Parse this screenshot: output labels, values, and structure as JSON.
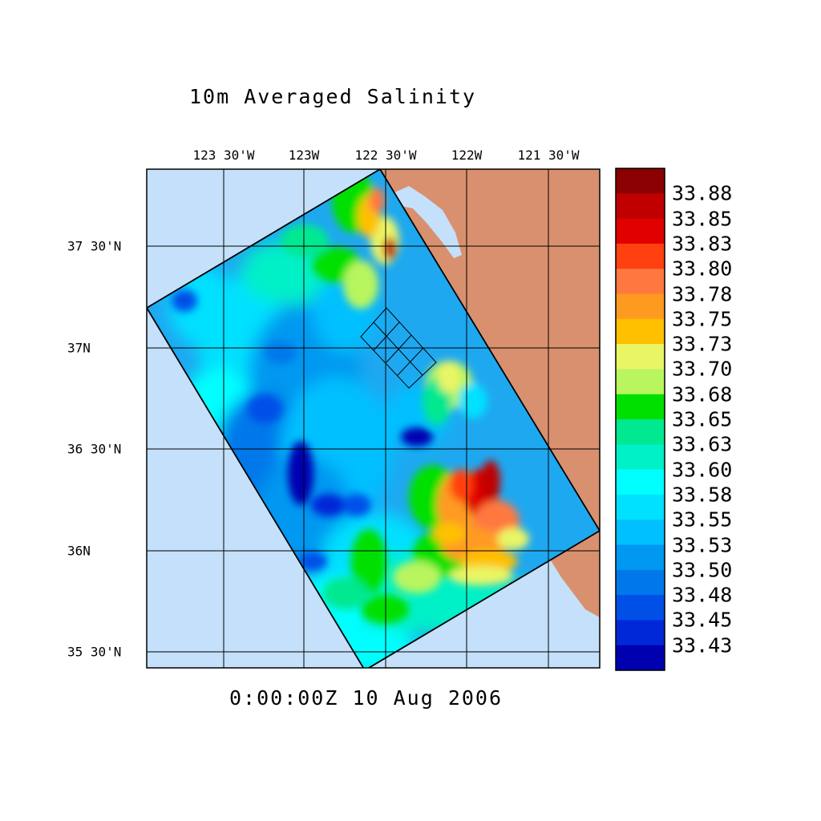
{
  "title": "10m Averaged Salinity",
  "time_label": "0:00:00Z  10 Aug 2006",
  "lon_labels": [
    "123 30'W",
    "123W",
    "122 30'W",
    "122W",
    "121 30'W"
  ],
  "lat_labels": [
    "37 30'N",
    "37N",
    "36 30'N",
    "36N",
    "35 30'N"
  ],
  "colorbar": {
    "labels": [
      "33.88",
      "33.85",
      "33.83",
      "33.80",
      "33.78",
      "33.75",
      "33.73",
      "33.70",
      "33.68",
      "33.65",
      "33.63",
      "33.60",
      "33.58",
      "33.55",
      "33.53",
      "33.50",
      "33.48",
      "33.45",
      "33.43"
    ],
    "colors": [
      "#8b0000",
      "#c00000",
      "#e00000",
      "#ff4010",
      "#ff7840",
      "#ff9a20",
      "#ffc000",
      "#eaf565",
      "#b8f55f",
      "#00e000",
      "#00e890",
      "#00f0c8",
      "#00ffff",
      "#00e0ff",
      "#00c0ff",
      "#0098f0",
      "#0078ea",
      "#0050e8",
      "#0028d8",
      "#0000b0"
    ]
  },
  "colors": {
    "ocean": "#c4e0fa",
    "land": "#d9906e",
    "domain_fill": "#1ea8f0"
  }
}
